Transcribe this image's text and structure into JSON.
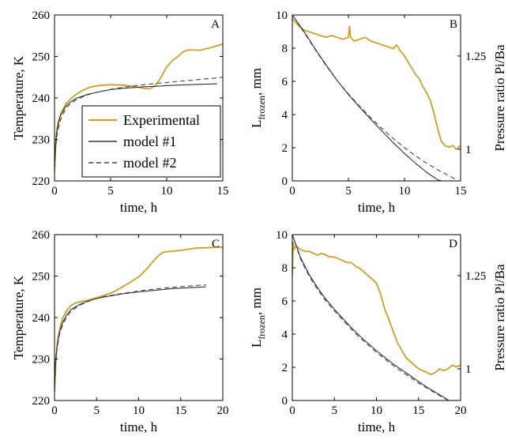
{
  "colors": {
    "experimental": "#C9A227",
    "model1": "#333333",
    "model2": "#444444",
    "axis": "#000000"
  },
  "chart_data": [
    {
      "panel": "A",
      "type": "line",
      "xlabel": "time, h",
      "ylabel": "Temperature, K",
      "xlim": [
        0,
        15
      ],
      "ylim": [
        220,
        260
      ],
      "xticks": [
        "0",
        "5",
        "10",
        "15"
      ],
      "yticks": [
        "220",
        "230",
        "240",
        "250",
        "260"
      ],
      "legend": {
        "position": "center",
        "entries": [
          "Experimental",
          "model #1",
          "model #2"
        ]
      },
      "series": [
        {
          "name": "Experimental",
          "style": "experimental",
          "x": [
            0,
            0.15,
            0.3,
            0.6,
            1,
            1.5,
            2,
            2.5,
            3,
            3.5,
            4,
            4.5,
            5,
            6,
            7,
            8,
            8.5,
            9,
            9.5,
            10,
            10.5,
            11,
            11.5,
            12,
            13,
            14,
            15
          ],
          "y": [
            222,
            231,
            234,
            236.5,
            238.5,
            240,
            241,
            241.8,
            242.4,
            242.8,
            243,
            243.1,
            243.2,
            243.1,
            242.8,
            242.3,
            242.2,
            243,
            245,
            247.5,
            249,
            250,
            251.2,
            251.6,
            251.5,
            252.2,
            253
          ]
        },
        {
          "name": "model #1",
          "style": "model1",
          "x": [
            0,
            0.1,
            0.25,
            0.5,
            1,
            1.5,
            2,
            3,
            4,
            5,
            6,
            7,
            8,
            9,
            10,
            11,
            12,
            13,
            14.5
          ],
          "y": [
            224,
            229,
            232.5,
            235.5,
            238,
            239.2,
            240,
            240.9,
            241.5,
            242,
            242.3,
            242.5,
            242.7,
            242.8,
            243,
            243.1,
            243.2,
            243.3,
            243.4
          ]
        },
        {
          "name": "model #2",
          "style": "model2",
          "x": [
            0,
            0.1,
            0.25,
            0.5,
            1,
            1.5,
            2,
            3,
            4,
            5,
            6,
            7,
            8,
            9,
            10,
            11,
            12,
            13,
            14,
            15
          ],
          "y": [
            223,
            228,
            231.5,
            234.5,
            237.5,
            238.8,
            239.7,
            240.8,
            241.5,
            242.1,
            242.5,
            242.9,
            243.2,
            243.5,
            243.7,
            244,
            244.2,
            244.5,
            244.7,
            245
          ]
        }
      ]
    },
    {
      "panel": "B",
      "type": "line",
      "xlabel": "time, h",
      "ylabel_main": "L",
      "ylabel_sub": "frozen",
      "ylabel_suffix": ", mm",
      "ylabel_right": "Pressure ratio Pi/Ba",
      "xlim": [
        0,
        15
      ],
      "ylim": [
        0,
        10
      ],
      "xticks": [
        "0",
        "5",
        "10",
        "15"
      ],
      "yticks": [
        "0",
        "2",
        "4",
        "6",
        "8",
        "10"
      ],
      "ylim_right": [
        0.915,
        1.36
      ],
      "yticks_right": [
        "1",
        "1.25"
      ],
      "series": [
        {
          "name": "Experimental",
          "axis": "right",
          "style": "experimental",
          "x": [
            0,
            0.3,
            0.6,
            1,
            1.5,
            2,
            2.5,
            3,
            3.5,
            4,
            4.5,
            5,
            5.1,
            5.2,
            5.5,
            6,
            6.5,
            7,
            7.5,
            8,
            8.5,
            9,
            9.3,
            9.6,
            10,
            10.3,
            10.6,
            11,
            11.3,
            11.6,
            12,
            12.3,
            12.6,
            13,
            13.3,
            13.6,
            14,
            14.3,
            14.6,
            15
          ],
          "y": [
            1.35,
            1.34,
            1.33,
            1.32,
            1.315,
            1.31,
            1.305,
            1.3,
            1.305,
            1.3,
            1.295,
            1.3,
            1.33,
            1.3,
            1.29,
            1.295,
            1.3,
            1.29,
            1.285,
            1.28,
            1.275,
            1.27,
            1.28,
            1.265,
            1.25,
            1.235,
            1.22,
            1.2,
            1.19,
            1.17,
            1.15,
            1.13,
            1.1,
            1.05,
            1.02,
            1.01,
            1.005,
            1.01,
            1.0,
            1.01
          ]
        },
        {
          "name": "model #1",
          "axis": "left",
          "style": "model1",
          "x": [
            0,
            1,
            2,
            3,
            4,
            5,
            6,
            7,
            8,
            9,
            10,
            11,
            12,
            13,
            13.3
          ],
          "y": [
            10,
            9.05,
            8.0,
            7.0,
            6.05,
            5.2,
            4.45,
            3.7,
            3.0,
            2.3,
            1.65,
            1.05,
            0.5,
            0.05,
            0
          ]
        },
        {
          "name": "model #2",
          "axis": "left",
          "style": "model2",
          "x": [
            0,
            1,
            2,
            3,
            4,
            5,
            6,
            7,
            8,
            9,
            10,
            11,
            12,
            13,
            14,
            14.7
          ],
          "y": [
            10,
            9.0,
            7.95,
            6.95,
            6.05,
            5.25,
            4.5,
            3.8,
            3.15,
            2.55,
            2.0,
            1.5,
            1.05,
            0.65,
            0.3,
            0.05
          ]
        }
      ]
    },
    {
      "panel": "C",
      "type": "line",
      "xlabel": "time, h",
      "ylabel": "Temperature, K",
      "xlim": [
        0,
        20
      ],
      "ylim": [
        220,
        260
      ],
      "xticks": [
        "0",
        "5",
        "10",
        "15",
        "20"
      ],
      "yticks": [
        "220",
        "230",
        "240",
        "250",
        "260"
      ],
      "series": [
        {
          "name": "Experimental",
          "style": "experimental",
          "x": [
            0,
            0.2,
            0.4,
            0.7,
            1,
            1.5,
            2,
            2.5,
            3,
            4,
            5,
            6,
            7,
            8,
            9,
            10,
            10.5,
            11,
            11.5,
            12,
            12.5,
            13,
            14,
            15,
            16,
            17,
            18,
            19,
            20
          ],
          "y": [
            222,
            231,
            235,
            238,
            240,
            241.8,
            243,
            243.5,
            243.8,
            244.2,
            244.8,
            245.4,
            246.2,
            247.3,
            248.5,
            249.8,
            250.8,
            251.8,
            253,
            254.2,
            255.2,
            255.8,
            256,
            256.2,
            256.5,
            256.8,
            256.8,
            257,
            257
          ]
        },
        {
          "name": "model #1",
          "style": "model1",
          "x": [
            0,
            0.1,
            0.3,
            0.6,
            1,
            1.5,
            2,
            3,
            4,
            5,
            6,
            8,
            10,
            12,
            14,
            16,
            18
          ],
          "y": [
            223,
            229,
            233,
            236.5,
            239,
            240.8,
            242,
            243.2,
            244,
            244.6,
            245,
            245.7,
            246.2,
            246.6,
            247,
            247.2,
            247.4
          ]
        },
        {
          "name": "model #2",
          "style": "model2",
          "x": [
            0,
            0.1,
            0.3,
            0.6,
            1,
            1.5,
            2,
            3,
            4,
            5,
            6,
            8,
            10,
            12,
            14,
            16,
            18
          ],
          "y": [
            222,
            228,
            232.5,
            236,
            238.5,
            240.3,
            241.6,
            243,
            243.9,
            244.6,
            245.1,
            245.8,
            246.4,
            246.9,
            247.3,
            247.6,
            247.9
          ]
        }
      ]
    },
    {
      "panel": "D",
      "type": "line",
      "xlabel": "time, h",
      "ylabel_main": "L",
      "ylabel_sub": "frozen",
      "ylabel_suffix": ", mm",
      "ylabel_right": "Pressure ratio Pi/Ba",
      "xlim": [
        0,
        20
      ],
      "ylim": [
        0,
        10
      ],
      "xticks": [
        "0",
        "5",
        "10",
        "15",
        "20"
      ],
      "yticks": [
        "0",
        "2",
        "4",
        "6",
        "8",
        "10"
      ],
      "ylim_right": [
        0.915,
        1.36
      ],
      "yticks_right": [
        "1",
        "1.25"
      ],
      "series": [
        {
          "name": "Experimental",
          "axis": "right",
          "style": "experimental",
          "x": [
            0,
            0.1,
            0.2,
            0.4,
            0.7,
            1,
            1.5,
            2,
            2.5,
            3,
            3.5,
            4,
            4.5,
            5,
            5.5,
            6,
            6.5,
            7,
            7.5,
            8,
            8.5,
            9,
            9.5,
            10,
            10.5,
            11,
            11.5,
            12,
            12.5,
            13,
            13.5,
            14,
            14.5,
            15,
            15.5,
            16,
            16.5,
            17,
            17.5,
            18,
            18.5,
            19,
            19.5,
            20
          ],
          "y": [
            1.25,
            1.34,
            1.32,
            1.33,
            1.325,
            1.32,
            1.315,
            1.315,
            1.31,
            1.305,
            1.31,
            1.305,
            1.3,
            1.3,
            1.295,
            1.29,
            1.285,
            1.285,
            1.275,
            1.27,
            1.26,
            1.25,
            1.24,
            1.23,
            1.2,
            1.16,
            1.13,
            1.1,
            1.07,
            1.05,
            1.03,
            1.02,
            1.01,
            1.0,
            0.995,
            0.99,
            0.985,
            0.99,
            1.0,
            0.995,
            1.0,
            1.01,
            1.005,
            1.01
          ]
        },
        {
          "name": "model #1",
          "axis": "left",
          "style": "model1",
          "x": [
            0,
            1,
            2,
            3,
            4,
            5,
            6,
            7,
            8,
            9,
            10,
            11,
            12,
            13,
            14,
            15,
            16,
            17,
            18,
            18.6
          ],
          "y": [
            10,
            8.6,
            7.6,
            6.8,
            6.1,
            5.5,
            4.95,
            4.4,
            3.9,
            3.45,
            3.0,
            2.6,
            2.2,
            1.85,
            1.5,
            1.15,
            0.8,
            0.5,
            0.2,
            0
          ]
        },
        {
          "name": "model #2",
          "axis": "left",
          "style": "model2",
          "x": [
            0,
            1,
            2,
            3,
            4,
            5,
            6,
            7,
            8,
            9,
            10,
            11,
            12,
            13,
            14,
            15,
            16,
            17,
            18,
            18.6
          ],
          "y": [
            10,
            8.5,
            7.5,
            6.7,
            6.0,
            5.4,
            4.85,
            4.3,
            3.8,
            3.35,
            2.9,
            2.5,
            2.1,
            1.75,
            1.4,
            1.05,
            0.75,
            0.45,
            0.15,
            0
          ]
        }
      ]
    }
  ]
}
